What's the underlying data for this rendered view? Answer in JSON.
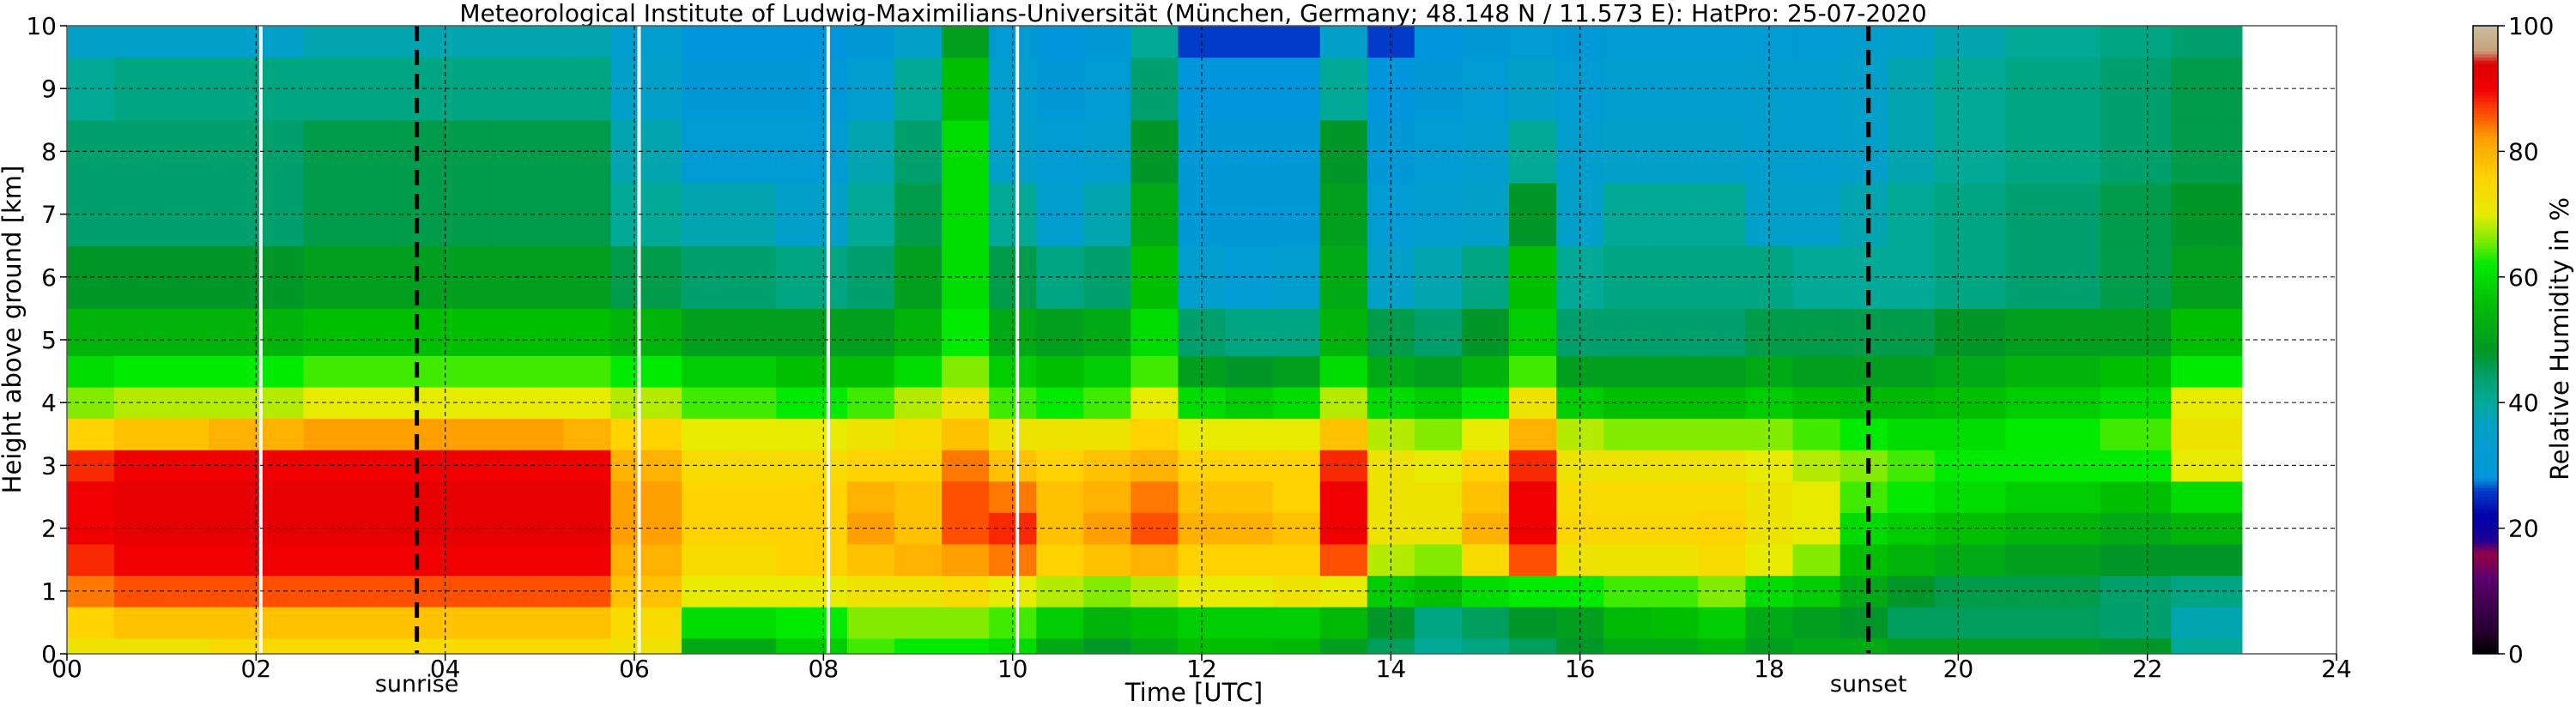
{
  "chart_data": {
    "type": "heatmap",
    "title": "Meteorological Institute of Ludwig-Maximilians-Universität (München, Germany; 48.148 N / 11.573 E):    HatPro: 25-07-2020",
    "xlabel": "Time [UTC]",
    "ylabel": "Height above ground [km]",
    "colorbar_label": "Relative Humidity in %",
    "xlim": [
      0,
      24
    ],
    "ylim": [
      0,
      10
    ],
    "x_ticks": [
      0,
      2,
      4,
      6,
      8,
      10,
      12,
      14,
      16,
      18,
      20,
      22,
      24
    ],
    "x_tick_labels": [
      "00",
      "02",
      "04",
      "06",
      "08",
      "10",
      "12",
      "14",
      "16",
      "18",
      "20",
      "22",
      "24"
    ],
    "y_ticks": [
      0,
      1,
      2,
      3,
      4,
      5,
      6,
      7,
      8,
      9,
      10
    ],
    "y_tick_labels": [
      "0",
      "1",
      "2",
      "3",
      "4",
      "5",
      "6",
      "7",
      "8",
      "9",
      "10"
    ],
    "colorbar_range": [
      0,
      100
    ],
    "colorbar_ticks": [
      0,
      20,
      40,
      60,
      80,
      100
    ],
    "colorbar_tick_labels": [
      "0",
      "20",
      "40",
      "60",
      "80",
      "100"
    ],
    "data_end_hour": 23.0,
    "grid": true,
    "markers": [
      {
        "label": "sunrise",
        "hour": 3.7
      },
      {
        "label": "sunset",
        "hour": 19.05
      }
    ],
    "data_gaps_hours": [
      2.05,
      6.05,
      8.05,
      10.05
    ],
    "time_hours": [
      0,
      1,
      2,
      3,
      4,
      5,
      5.5,
      6,
      7,
      8,
      8.5,
      9,
      9.5,
      10,
      10.5,
      11,
      11.5,
      12,
      12.5,
      13,
      13.5,
      14,
      14.5,
      15,
      15.5,
      16,
      16.5,
      17,
      17.5,
      18,
      18.5,
      19,
      19.5,
      20,
      21,
      22,
      22.5,
      23
    ],
    "height_km": [
      0,
      0.5,
      1,
      1.5,
      2,
      2.5,
      3,
      3.5,
      4,
      4.5,
      5,
      6,
      7,
      8,
      9,
      10
    ],
    "rh_percent_by_height": [
      [
        72,
        72,
        74,
        74,
        74,
        74,
        74,
        72,
        52,
        58,
        64,
        62,
        62,
        60,
        52,
        48,
        52,
        56,
        56,
        55,
        50,
        45,
        40,
        42,
        45,
        48,
        52,
        52,
        54,
        50,
        52,
        52,
        50,
        50,
        50,
        48,
        40,
        40
      ],
      [
        76,
        78,
        78,
        78,
        78,
        78,
        78,
        74,
        60,
        62,
        66,
        66,
        66,
        64,
        58,
        54,
        56,
        58,
        58,
        58,
        55,
        48,
        42,
        45,
        48,
        50,
        55,
        56,
        58,
        52,
        50,
        48,
        45,
        45,
        45,
        44,
        38,
        38
      ],
      [
        84,
        86,
        86,
        86,
        86,
        86,
        86,
        78,
        70,
        70,
        72,
        72,
        74,
        70,
        68,
        66,
        68,
        70,
        70,
        72,
        70,
        58,
        56,
        60,
        62,
        62,
        64,
        64,
        66,
        60,
        58,
        52,
        48,
        46,
        46,
        44,
        42,
        42
      ],
      [
        88,
        90,
        90,
        90,
        90,
        90,
        90,
        80,
        74,
        76,
        78,
        80,
        82,
        84,
        76,
        78,
        80,
        76,
        76,
        76,
        86,
        68,
        66,
        74,
        86,
        72,
        72,
        72,
        74,
        70,
        66,
        56,
        54,
        52,
        50,
        48,
        48,
        48
      ],
      [
        90,
        92,
        92,
        92,
        92,
        92,
        92,
        82,
        76,
        76,
        82,
        78,
        86,
        88,
        78,
        82,
        86,
        80,
        80,
        78,
        90,
        72,
        72,
        80,
        90,
        75,
        75,
        75,
        76,
        72,
        70,
        60,
        58,
        56,
        54,
        52,
        54,
        54
      ],
      [
        90,
        92,
        92,
        92,
        92,
        92,
        92,
        82,
        76,
        76,
        80,
        78,
        86,
        84,
        78,
        80,
        84,
        78,
        78,
        76,
        90,
        72,
        72,
        78,
        90,
        74,
        74,
        74,
        74,
        72,
        70,
        64,
        62,
        60,
        58,
        56,
        60,
        60
      ],
      [
        88,
        90,
        90,
        90,
        90,
        90,
        90,
        80,
        74,
        74,
        76,
        76,
        84,
        78,
        76,
        78,
        80,
        76,
        76,
        76,
        88,
        72,
        70,
        76,
        88,
        72,
        72,
        72,
        72,
        70,
        68,
        66,
        64,
        62,
        62,
        62,
        70,
        70
      ],
      [
        76,
        78,
        80,
        82,
        82,
        82,
        80,
        76,
        70,
        70,
        72,
        74,
        78,
        72,
        72,
        72,
        76,
        70,
        70,
        70,
        78,
        68,
        66,
        70,
        80,
        68,
        66,
        66,
        66,
        66,
        64,
        62,
        60,
        60,
        62,
        64,
        72,
        72
      ],
      [
        66,
        68,
        68,
        70,
        70,
        70,
        70,
        68,
        64,
        62,
        64,
        68,
        72,
        64,
        62,
        64,
        70,
        60,
        58,
        60,
        68,
        60,
        58,
        62,
        72,
        58,
        56,
        56,
        56,
        58,
        56,
        55,
        55,
        56,
        58,
        60,
        70,
        70
      ],
      [
        60,
        62,
        62,
        64,
        64,
        64,
        64,
        62,
        58,
        56,
        56,
        60,
        66,
        58,
        56,
        58,
        64,
        50,
        48,
        50,
        60,
        52,
        50,
        54,
        64,
        50,
        50,
        50,
        50,
        52,
        50,
        50,
        50,
        52,
        54,
        56,
        62,
        62
      ],
      [
        54,
        54,
        54,
        56,
        56,
        56,
        56,
        54,
        50,
        50,
        50,
        54,
        62,
        52,
        50,
        52,
        60,
        44,
        42,
        42,
        54,
        46,
        44,
        48,
        58,
        44,
        44,
        44,
        44,
        46,
        46,
        46,
        46,
        48,
        50,
        50,
        56,
        56
      ],
      [
        48,
        48,
        48,
        50,
        50,
        50,
        50,
        46,
        44,
        42,
        44,
        50,
        60,
        46,
        42,
        44,
        56,
        34,
        32,
        34,
        52,
        36,
        38,
        42,
        56,
        40,
        42,
        42,
        42,
        42,
        40,
        40,
        40,
        42,
        44,
        46,
        50,
        50
      ],
      [
        44,
        44,
        44,
        46,
        46,
        46,
        46,
        40,
        38,
        36,
        40,
        46,
        60,
        40,
        34,
        38,
        52,
        30,
        30,
        30,
        50,
        32,
        34,
        36,
        48,
        36,
        40,
        40,
        40,
        36,
        36,
        38,
        40,
        42,
        44,
        46,
        48,
        48
      ],
      [
        44,
        44,
        44,
        46,
        46,
        46,
        46,
        38,
        32,
        32,
        38,
        44,
        60,
        36,
        32,
        34,
        48,
        30,
        30,
        30,
        48,
        30,
        32,
        34,
        40,
        34,
        36,
        36,
        36,
        34,
        34,
        36,
        38,
        40,
        42,
        44,
        46,
        46
      ],
      [
        40,
        42,
        42,
        42,
        42,
        42,
        42,
        36,
        30,
        30,
        34,
        40,
        56,
        34,
        30,
        32,
        44,
        28,
        28,
        28,
        40,
        28,
        30,
        32,
        36,
        32,
        34,
        34,
        34,
        34,
        34,
        36,
        38,
        40,
        42,
        44,
        46,
        46
      ],
      [
        36,
        36,
        36,
        38,
        38,
        38,
        38,
        34,
        28,
        28,
        30,
        36,
        50,
        32,
        28,
        30,
        40,
        26,
        26,
        26,
        36,
        26,
        28,
        30,
        32,
        30,
        32,
        32,
        32,
        32,
        32,
        34,
        36,
        38,
        40,
        42,
        44,
        44
      ]
    ]
  }
}
